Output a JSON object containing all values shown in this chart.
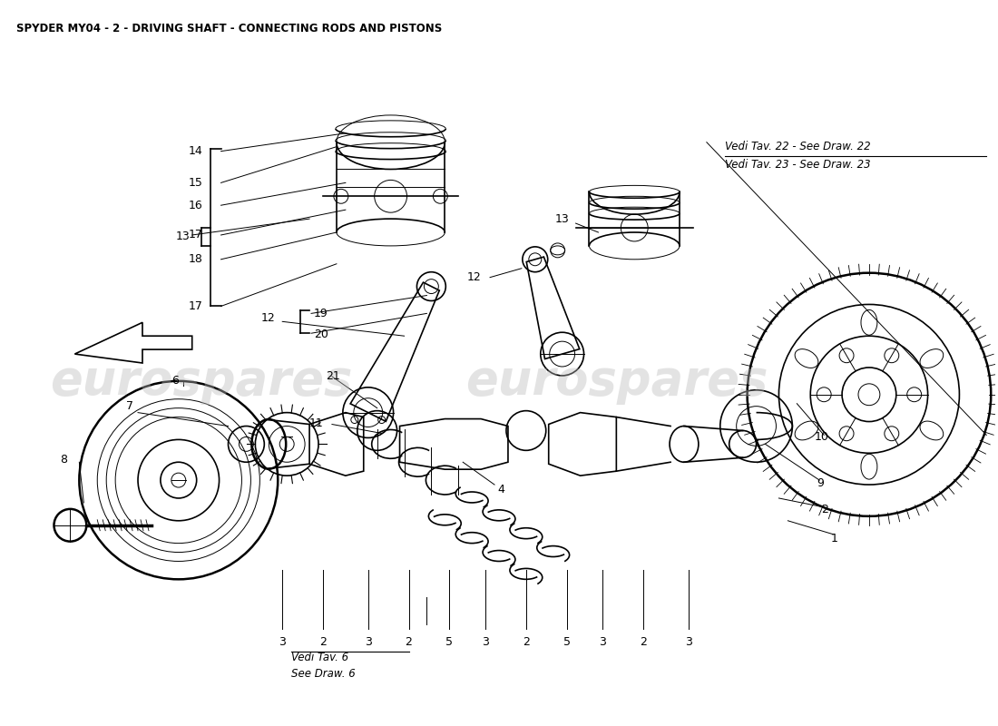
{
  "title": "SPYDER MY04 - 2 - DRIVING SHAFT - CONNECTING RODS AND PISTONS",
  "title_fontsize": 8.5,
  "bg_color": "#ffffff",
  "watermark_text": "eurospares",
  "watermark_color": "#bbbbbb",
  "see_draw22": "Vedi Tav. 22 - See Draw. 22",
  "see_draw23": "Vedi Tav. 23 - See Draw. 23",
  "see_draw6_1": "Vedi Tav. 6",
  "see_draw6_2": "See Draw. 6",
  "label_fontsize": 9.0,
  "italic_fontsize": 8.5
}
